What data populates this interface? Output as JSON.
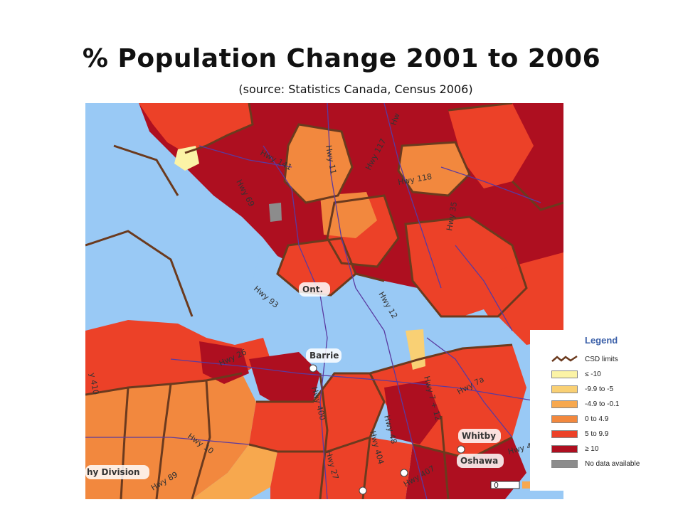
{
  "title": "% Population Change 2001 to 2006",
  "subtitle": "(source: Statistics Canada, Census 2006)",
  "colors": {
    "water": "#99c9f5",
    "le_neg10": "#fbf3a6",
    "neg9_9_to_neg5": "#f9d074",
    "neg4_9_to_neg0_1": "#f7a84e",
    "zero_to_4_9": "#f2883e",
    "five_to_9_9": "#ec4128",
    "ge_10": "#ae0f20",
    "no_data": "#8c8c8c",
    "csd_limits": "#6b3a1e",
    "roads": "#5a3aa0"
  },
  "legend": {
    "title": "Legend",
    "items": [
      {
        "label": "CSD limits",
        "kind": "line",
        "color": "#6b3a1e"
      },
      {
        "label": "≤ -10",
        "kind": "swatch",
        "color": "#fbf3a6"
      },
      {
        "label": "-9.9 to -5",
        "kind": "swatch",
        "color": "#f9d074"
      },
      {
        "label": "-4.9 to -0.1",
        "kind": "swatch",
        "color": "#f7a84e"
      },
      {
        "label": "0 to 4.9",
        "kind": "swatch",
        "color": "#f2883e"
      },
      {
        "label": "5 to 9.9",
        "kind": "swatch",
        "color": "#ec4128"
      },
      {
        "label": "≥ 10",
        "kind": "swatch",
        "color": "#ae0f20"
      },
      {
        "label": "No data available",
        "kind": "swatch",
        "color": "#8c8c8c"
      }
    ]
  },
  "places": {
    "ont": "Ont.",
    "barrie": "Barrie",
    "whitby": "Whitby",
    "oshawa": "Oshawa",
    "division": "hy Division"
  },
  "highways": {
    "h141": "Hwy 141",
    "h11": "Hwy 11",
    "h117": "Hwy 117",
    "h118": "Hwy 118",
    "h35": "Hwy 35",
    "h69": "Hwy 69",
    "h93": "Hwy 93",
    "h12": "Hwy 12",
    "h26": "Hwy 26",
    "h400": "Hwy 400",
    "h7a": "Hwy 7a",
    "h712": "Hwy 7 + 12",
    "h48": "Hwy 48",
    "h404": "Hwy 404",
    "h407": "Hwy 407",
    "h27": "Hwy 27",
    "h10": "Hwy 10",
    "h89": "Hwy 89",
    "h401": "Hwy 4",
    "h410": "y 410",
    "hwy_partial": "Hw"
  },
  "scale_label": "0"
}
